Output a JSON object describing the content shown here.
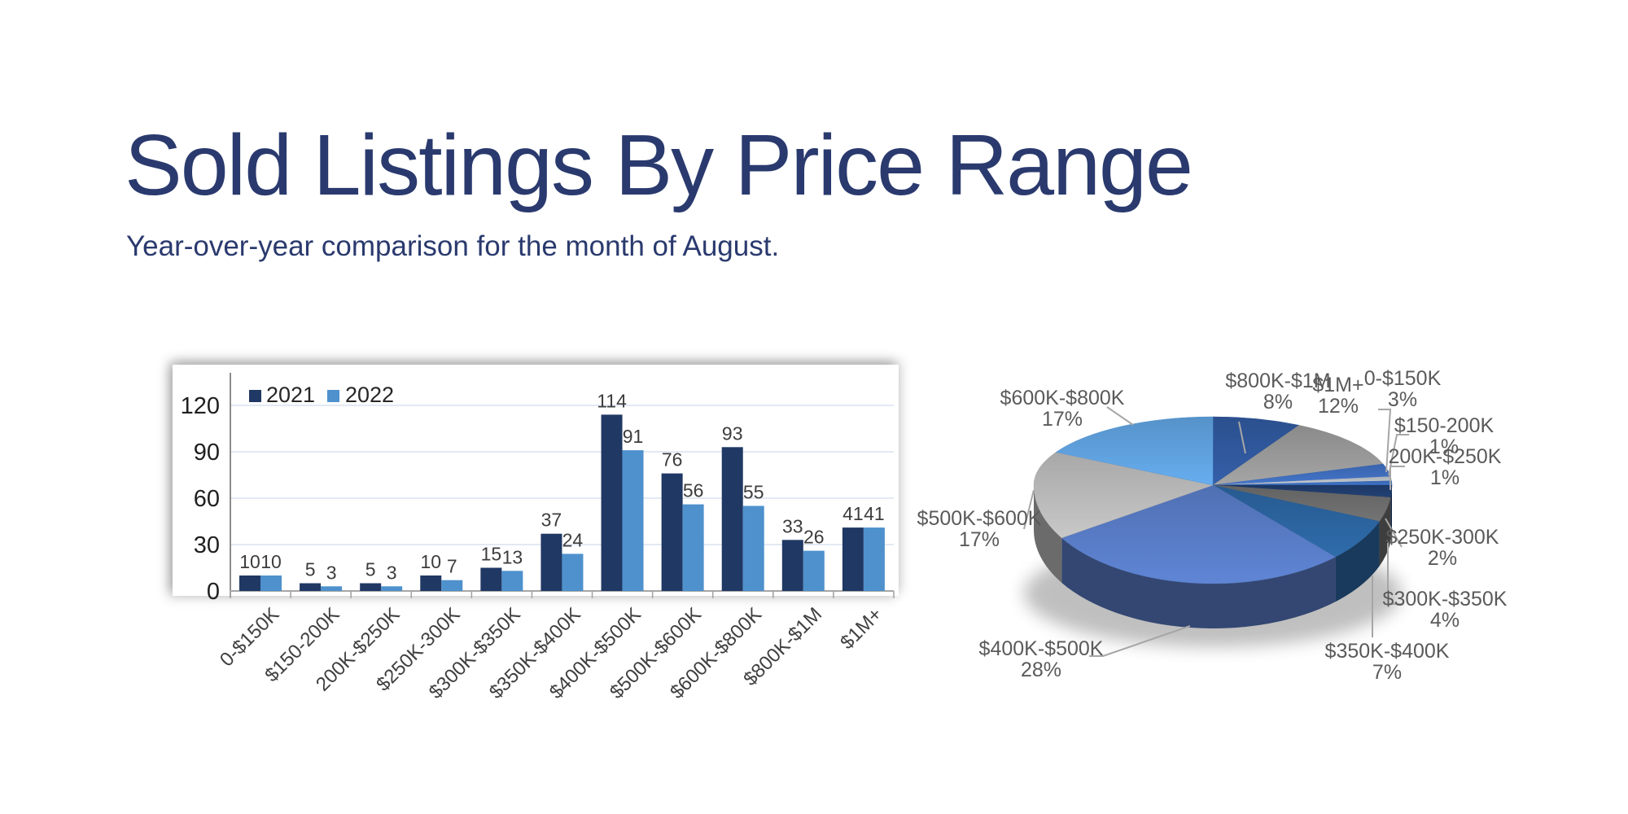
{
  "header": {
    "title": "Sold Listings By Price Range",
    "subtitle": "Year-over-year comparison for the month of August.",
    "title_color": "#2A3A6E"
  },
  "chart_data": [
    {
      "type": "bar",
      "title": "Sold listings by price range, bar comparison",
      "categories": [
        "0-$150K",
        "$150-200K",
        "200K-$250K",
        "$250K-300K",
        "$300K-$350K",
        "$350K-$400K",
        "$400K-$500K",
        "$500K-$600K",
        "$600K-$800K",
        "$800K-$1M",
        "$1M+"
      ],
      "series": [
        {
          "name": "2021",
          "color": "#203864",
          "values": [
            10,
            5,
            5,
            10,
            15,
            37,
            114,
            76,
            93,
            33,
            41
          ]
        },
        {
          "name": "2022",
          "color": "#4E91CD",
          "values": [
            10,
            3,
            3,
            7,
            13,
            24,
            91,
            56,
            55,
            26,
            41
          ]
        }
      ],
      "ylim": [
        0,
        130
      ],
      "yticks": [
        0,
        30,
        60,
        90,
        120
      ],
      "grid": true,
      "gridline_color": "#D9E2F0",
      "axis_color": "#A6A6A6",
      "tick_label_color": "#1F1F1F",
      "value_label_color": "#3D3D3D",
      "category_label_color": "#404040",
      "legend_position": "top-left"
    },
    {
      "type": "pie",
      "title": "Sold listings by price range, share of total",
      "style": "3d",
      "start_angle_deg": -90,
      "direction": "clockwise",
      "label_color": "#5A5A5A",
      "leader_color": "#A6A6A6",
      "slices": [
        {
          "label": "$800K-$1M",
          "pct": 8,
          "pct_label": "8%",
          "color": "#2E5597"
        },
        {
          "label": "$1M+",
          "pct": 12,
          "pct_label": "12%",
          "color": "#939393"
        },
        {
          "label": "0-$150K",
          "pct": 3,
          "pct_label": "3%",
          "color": "#3D69B6"
        },
        {
          "label": "$150-200K",
          "pct": 1,
          "pct_label": "1%",
          "color": "#B4BAC1"
        },
        {
          "label": "200K-$250K",
          "pct": 1,
          "pct_label": "1%",
          "color": "#3A6AB8"
        },
        {
          "label": "$250K-300K",
          "pct": 2,
          "pct_label": "2%",
          "color": "#1E3A69"
        },
        {
          "label": "$300K-$350K",
          "pct": 4,
          "pct_label": "4%",
          "color": "#686868"
        },
        {
          "label": "$350K-$400K",
          "pct": 7,
          "pct_label": "7%",
          "color": "#2A6099"
        },
        {
          "label": "$400K-$500K",
          "pct": 28,
          "pct_label": "28%",
          "color": "#5577BE"
        },
        {
          "label": "$500K-$600K",
          "pct": 17,
          "pct_label": "17%",
          "color": "#B3B3B3"
        },
        {
          "label": "$600K-$800K",
          "pct": 17,
          "pct_label": "17%",
          "color": "#5C9BD6"
        }
      ]
    }
  ]
}
